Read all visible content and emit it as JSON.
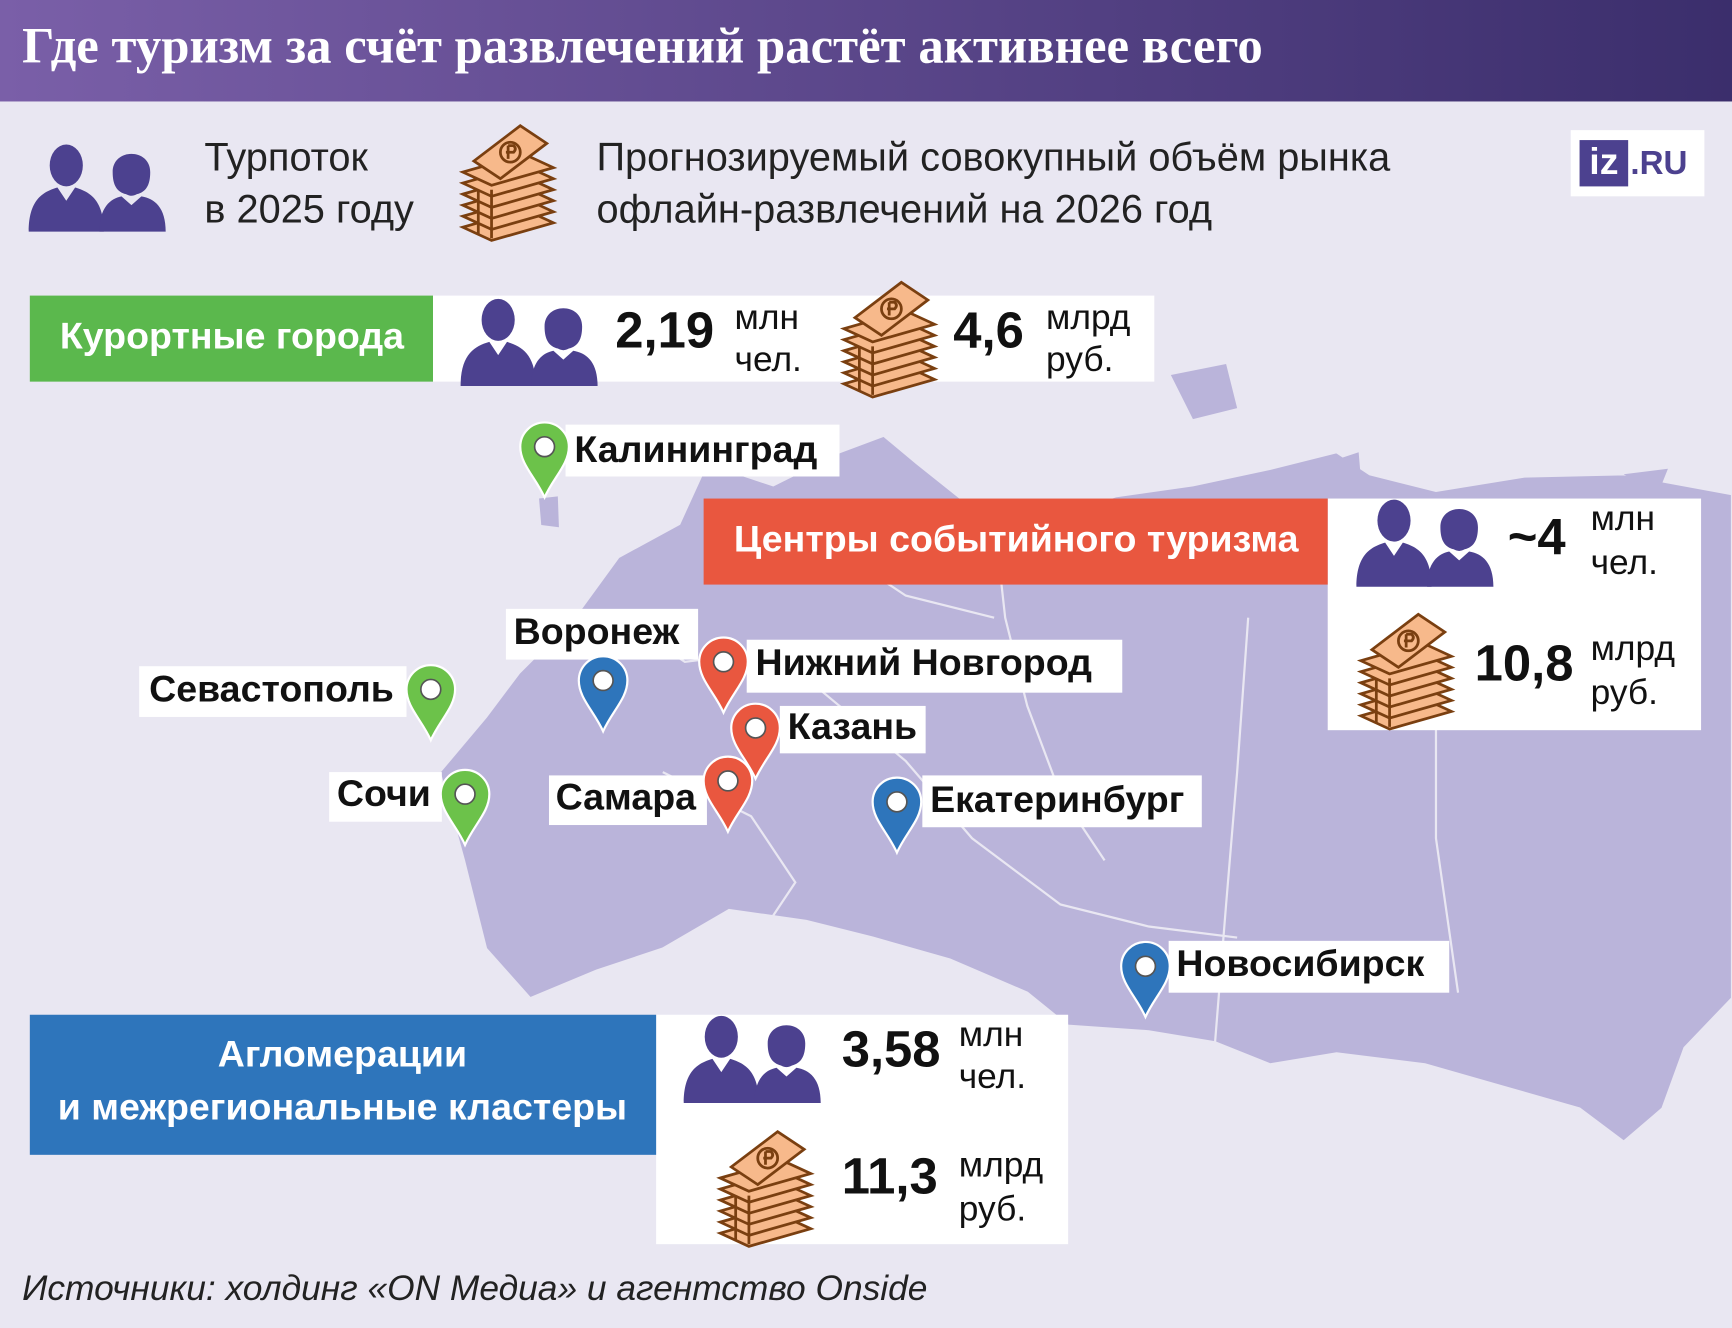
{
  "header": {
    "title": "Где туризм за счёт развлечений растёт активнее всего"
  },
  "legend": {
    "tourists": [
      "Турпоток",
      "в 2025 году"
    ],
    "market": [
      "Прогнозируемый совокупный объём рынка",
      "офлайн-развлечений на 2026 год"
    ]
  },
  "logo": {
    "left": "iz",
    "right": ".RU"
  },
  "groups": {
    "resorts": {
      "label": [
        "Курортные города"
      ],
      "tourists": "2,19",
      "tourists_unit": [
        "млн",
        "чел."
      ],
      "market": "4,6",
      "market_unit": [
        "млрд",
        "руб."
      ]
    },
    "events": {
      "label": [
        "Центры событийного туризма"
      ],
      "tourists": "~4",
      "tourists_unit": [
        "млн",
        "чел."
      ],
      "market": "10,8",
      "market_unit": [
        "млрд",
        "руб."
      ]
    },
    "agglomerations": {
      "label": [
        "Агломерации",
        "и межрегиональные кластеры"
      ],
      "tourists": "3,58",
      "tourists_unit": [
        "млн",
        "чел."
      ],
      "market": "11,3",
      "market_unit": [
        "млрд",
        "руб."
      ]
    }
  },
  "cities": [
    "Калининград",
    "Воронеж",
    "Севастополь",
    "Нижний Новгород",
    "Казань",
    "Сочи",
    "Самара",
    "Екатеринбург",
    "Новосибирск"
  ],
  "source": "Источники: холдинг «ON Медиа» и агентство Onside"
}
